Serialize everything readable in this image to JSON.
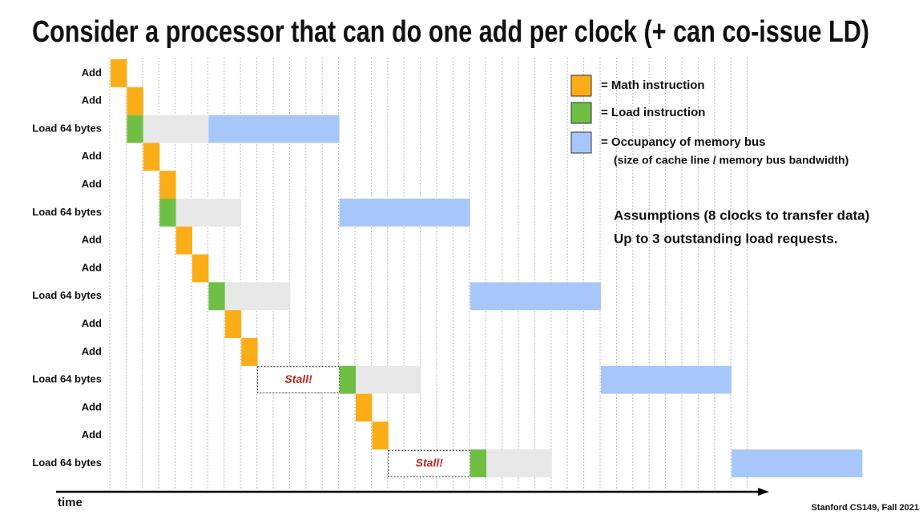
{
  "title": "Consider a processor that can do one add per clock (+ can co-issue LD)",
  "rows": [
    "Add",
    "Add",
    "Load 64 bytes",
    "Add",
    "Add",
    "Load 64 bytes",
    "Add",
    "Add",
    "Load 64 bytes",
    "Add",
    "Add",
    "Load 64 bytes",
    "Add",
    "Add",
    "Load 64 bytes"
  ],
  "stalls": [
    "Stall!",
    "Stall!"
  ],
  "legend": {
    "math": "= Math instruction",
    "load": "= Load instruction",
    "bus": "= Occupancy of memory bus",
    "bus_note": "(size of cache line / memory bus bandwidth)"
  },
  "assumptions": [
    "Assumptions (8 clocks to transfer data)",
    "Up to 3 outstanding load requests."
  ],
  "axis_label": "time",
  "footer": "Stanford CS149, Fall 2021"
}
